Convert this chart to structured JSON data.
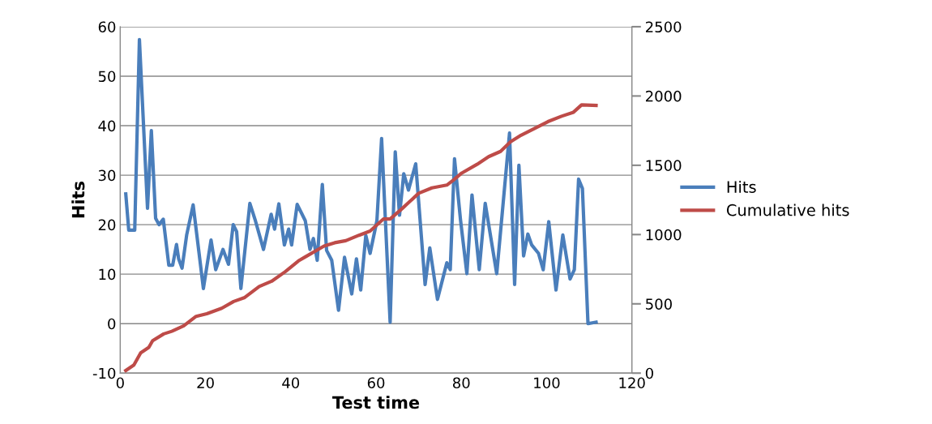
{
  "chart_data": {
    "type": "line",
    "xlabel": "Test time",
    "ylabel": "Hits",
    "xlim": [
      0,
      120
    ],
    "xticks": [
      0,
      20,
      40,
      60,
      80,
      100,
      120
    ],
    "ylim": [
      -10,
      60
    ],
    "yticks": [
      -10,
      0,
      10,
      20,
      30,
      40,
      50,
      60
    ],
    "y2lim": [
      0,
      2500
    ],
    "y2ticks": [
      0,
      500,
      1000,
      1500,
      2000,
      2500
    ],
    "grid": "y",
    "legend": "right",
    "marker": "none",
    "line_style": "solid",
    "series": [
      {
        "name": "Hits",
        "color": "#4a7ebb",
        "x": [
          1.3,
          2,
          3.4,
          4.5,
          6.4,
          7.3,
          8.3,
          9.1,
          10.1,
          11.4,
          12.3,
          13.2,
          13.7,
          14.5,
          15.6,
          17.1,
          19.5,
          21.3,
          22.4,
          24.1,
          25.4,
          26.5,
          27.3,
          28.3,
          30.4,
          31.7,
          33.6,
          35.4,
          36.2,
          37.2,
          38.5,
          39.5,
          40.2,
          41.5,
          43.4,
          44.5,
          45.3,
          46.2,
          47.4,
          48.4,
          49.6,
          51.2,
          52.6,
          54.3,
          55.4,
          56.4,
          57.6,
          58.6,
          60.2,
          61.3,
          63.3,
          64.5,
          65.5,
          66.5,
          67.6,
          69.3,
          71.5,
          72.6,
          74.4,
          76.6,
          77.4,
          78.4,
          79.8,
          81.3,
          82.5,
          84.2,
          85.6,
          88.3,
          91.3,
          92.5,
          93.5,
          94.6,
          95.6,
          96.5,
          98.1,
          99.2,
          100.5,
          102.2,
          103.8,
          105.5,
          106.5,
          107.5,
          108.4,
          109.7,
          111.6
        ],
        "values": [
          26.2,
          18.9,
          18.9,
          57.4,
          23.3,
          39,
          21.3,
          20,
          21.1,
          11.8,
          11.8,
          16,
          13.1,
          11.2,
          18,
          24,
          7.1,
          16.9,
          10.9,
          15,
          12,
          20,
          18.6,
          7.1,
          24.3,
          20.8,
          15,
          22.1,
          19.1,
          24.2,
          15.9,
          19.1,
          15.9,
          24.1,
          20.8,
          15,
          17.2,
          12.8,
          28.1,
          14.8,
          12.8,
          2.7,
          13.4,
          6,
          13.1,
          6.8,
          17.8,
          14.2,
          20.8,
          37.4,
          0.3,
          34.7,
          21.9,
          30.3,
          27,
          32.3,
          7.9,
          15.3,
          4.9,
          12.3,
          10.9,
          33.3,
          21,
          10.1,
          26,
          10.9,
          24.3,
          10.1,
          38.5,
          7.9,
          32,
          13.7,
          18.1,
          15.9,
          14.2,
          10.9,
          20.6,
          6.8,
          17.9,
          9,
          10.9,
          29.2,
          27.3,
          0,
          0.3
        ]
      },
      {
        "name": "Cumulative hits",
        "color": "#be4b48",
        "axis": "y2",
        "x": [
          1.3,
          3.2,
          4.8,
          6.7,
          7.6,
          10.2,
          12.1,
          14.9,
          17.8,
          20.3,
          23.8,
          26.6,
          29.2,
          32.6,
          35.5,
          38.7,
          41.8,
          43.4,
          47.8,
          50.3,
          52.9,
          56,
          58.6,
          61.7,
          63.3,
          66.2,
          70,
          73.1,
          76.6,
          78.2,
          80.1,
          83.7,
          86.4,
          89.2,
          91.5,
          94,
          97.2,
          100.3,
          103.5,
          106.3,
          108.2,
          111.6
        ],
        "values": [
          19,
          59,
          146,
          186,
          234,
          283,
          302,
          341,
          410,
          429,
          468,
          517,
          546,
          625,
          663,
          732,
          810,
          839,
          917,
          941,
          956,
          995,
          1025,
          1112,
          1112,
          1190,
          1298,
          1337,
          1357,
          1395,
          1444,
          1507,
          1562,
          1600,
          1669,
          1717,
          1766,
          1815,
          1854,
          1883,
          1936,
          1932
        ]
      }
    ]
  }
}
